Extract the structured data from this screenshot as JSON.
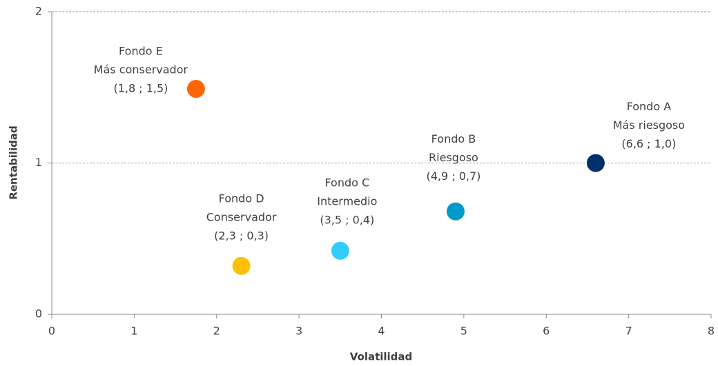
{
  "chart_data": {
    "type": "scatter",
    "x_label": "Volatilidad",
    "y_label": "Rentabilidad",
    "xlim": [
      0,
      8
    ],
    "xticks": [
      0,
      1,
      2,
      3,
      4,
      5,
      6,
      7,
      8
    ],
    "ylim": [
      0,
      2
    ],
    "yticks": [
      0,
      1,
      2
    ],
    "grid": true,
    "series": [
      {
        "name": "Fondo E",
        "description": "Más conservador",
        "color": "#ff6600",
        "x": [
          1.75
        ],
        "values": [
          1.49
        ],
        "value_labels": [
          "(1,8 ; 1,5)"
        ]
      },
      {
        "name": "Fondo D",
        "description": "Conservador",
        "color": "#ffc000",
        "x": [
          2.3
        ],
        "values": [
          0.32
        ],
        "value_labels": [
          "(2,3 ; 0,3)"
        ]
      },
      {
        "name": "Fondo C",
        "description": "Intermedio",
        "color": "#33ccff",
        "x": [
          3.5
        ],
        "values": [
          0.42
        ],
        "value_labels": [
          "(3,5 ; 0,4)"
        ]
      },
      {
        "name": "Fondo B",
        "description": "Riesgoso",
        "color": "#0099cc",
        "x": [
          4.9
        ],
        "values": [
          0.68
        ],
        "value_labels": [
          "(4,9 ; 0,7)"
        ]
      },
      {
        "name": "Fondo A",
        "description": "Más riesgoso",
        "color": "#002f6c",
        "x": [
          6.6
        ],
        "values": [
          1.0
        ],
        "value_labels": [
          "(6,6 ; 1,0)"
        ]
      }
    ]
  }
}
